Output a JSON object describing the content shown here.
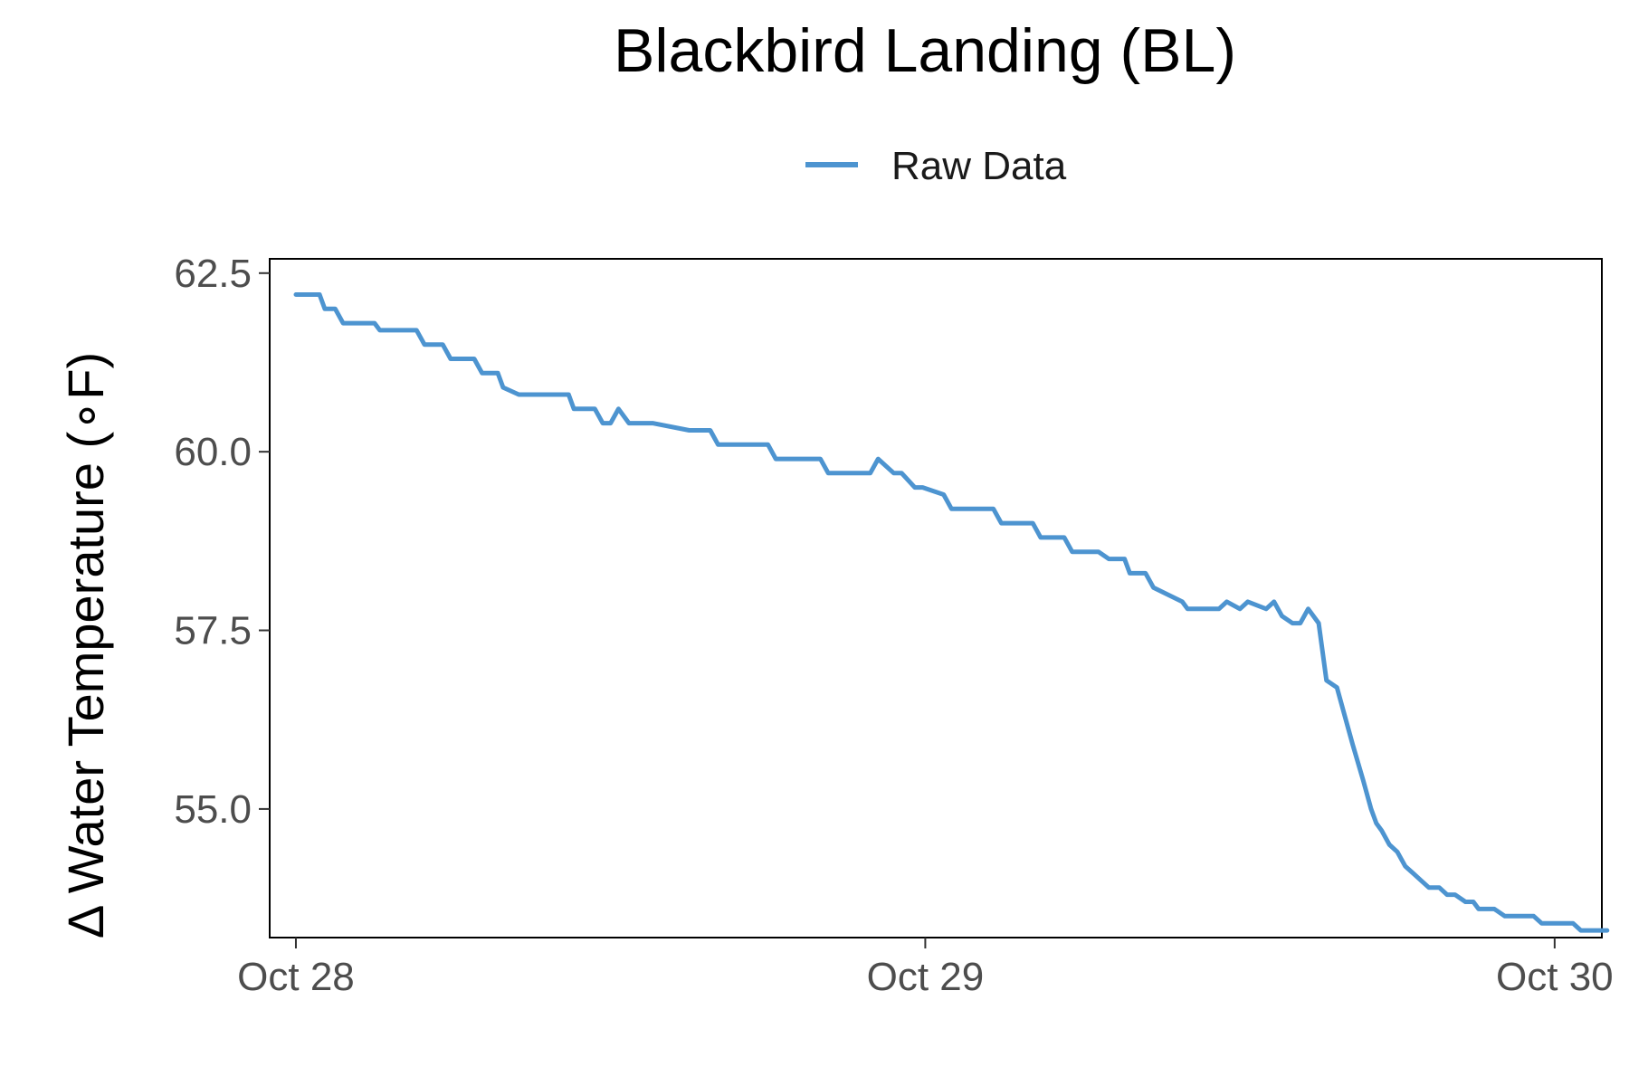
{
  "chart_data": {
    "type": "line",
    "title": "Blackbird Landing (BL)",
    "ylabel": "Δ Water Temperature (∘F)",
    "xlabel": "",
    "x_ticks": [
      "Oct 28",
      "Oct 29",
      "Oct 30"
    ],
    "y_ticks": [
      "55.0",
      "57.5",
      "60.0",
      "62.5"
    ],
    "ylim": [
      53.2,
      62.7
    ],
    "xlim_hours": [
      -1.0,
      49.8
    ],
    "legend": {
      "position": "top",
      "entries": [
        "Raw Data"
      ]
    },
    "grid": false,
    "colors": {
      "series": "#4d94d0"
    },
    "series": [
      {
        "name": "Raw Data",
        "x_unit": "hours from Oct 28 00:00",
        "x": [
          0,
          0.9,
          1.1,
          1.5,
          1.8,
          3.0,
          3.2,
          4.6,
          4.9,
          5.6,
          5.9,
          6.8,
          7.1,
          7.7,
          7.9,
          8.5,
          10.4,
          10.6,
          11.4,
          11.7,
          12.0,
          12.3,
          12.7,
          13.0,
          13.6,
          15.0,
          15.3,
          15.8,
          16.1,
          18.0,
          18.3,
          20.0,
          20.3,
          21.9,
          22.2,
          22.8,
          23.1,
          23.6,
          23.9,
          24.7,
          25.0,
          26.6,
          26.9,
          28.1,
          28.4,
          29.3,
          29.6,
          30.6,
          31.0,
          31.6,
          31.8,
          32.4,
          32.7,
          33.8,
          34.0,
          35.2,
          35.5,
          36.0,
          36.3,
          37.0,
          37.3,
          37.6,
          38.0,
          38.3,
          38.6,
          39.0,
          39.3,
          39.7,
          40.0,
          40.3,
          40.7,
          41.0,
          41.2,
          41.4,
          41.7,
          42.0,
          42.3,
          42.6,
          42.9,
          43.2,
          43.6,
          43.9,
          44.2,
          44.6,
          44.9,
          45.1,
          45.4,
          45.7,
          46.1,
          46.4,
          46.8,
          47.2,
          47.5,
          47.9,
          48.3,
          48.7,
          49.0,
          49.4,
          49.7,
          50.0
        ],
        "values": [
          62.2,
          62.2,
          62.0,
          62.0,
          61.8,
          61.8,
          61.7,
          61.7,
          61.5,
          61.5,
          61.3,
          61.3,
          61.1,
          61.1,
          60.9,
          60.8,
          60.8,
          60.6,
          60.6,
          60.4,
          60.4,
          60.6,
          60.4,
          60.4,
          60.4,
          60.3,
          60.3,
          60.3,
          60.1,
          60.1,
          59.9,
          59.9,
          59.7,
          59.7,
          59.9,
          59.7,
          59.7,
          59.5,
          59.5,
          59.4,
          59.2,
          59.2,
          59.0,
          59.0,
          58.8,
          58.8,
          58.6,
          58.6,
          58.5,
          58.5,
          58.3,
          58.3,
          58.1,
          57.9,
          57.8,
          57.8,
          57.9,
          57.8,
          57.9,
          57.8,
          57.9,
          57.7,
          57.6,
          57.6,
          57.8,
          57.6,
          56.8,
          56.7,
          56.3,
          55.9,
          55.4,
          55.0,
          54.8,
          54.7,
          54.5,
          54.4,
          54.2,
          54.1,
          54.0,
          53.9,
          53.9,
          53.8,
          53.8,
          53.7,
          53.7,
          53.6,
          53.6,
          53.6,
          53.5,
          53.5,
          53.5,
          53.5,
          53.4,
          53.4,
          53.4,
          53.4,
          53.3,
          53.3,
          53.3,
          53.3
        ]
      }
    ]
  }
}
